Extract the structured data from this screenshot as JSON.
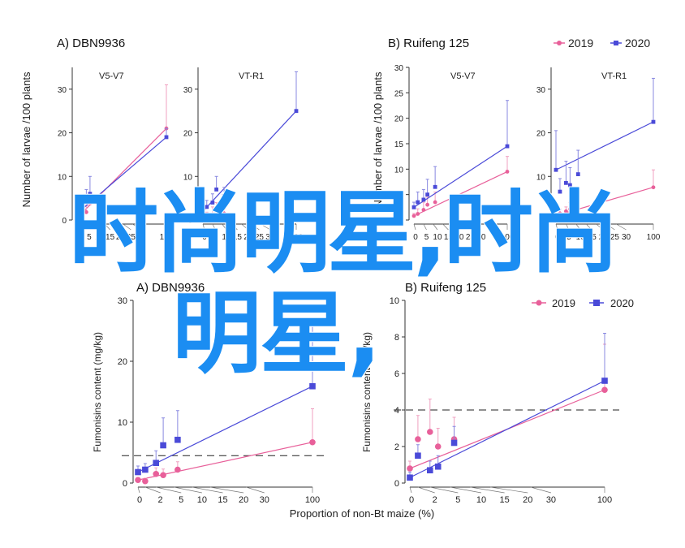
{
  "legend_years": [
    "2019",
    "2020"
  ],
  "colors": {
    "s2019": "#e8609a",
    "s2020": "#4a4ad8",
    "axis": "#333333",
    "errbar_2019": "#f0a0c0",
    "errbar_2020": "#8888e0",
    "overlay": "#1b8df2"
  },
  "overlay_text": {
    "line1": "时尚明星,时尚",
    "line2": "明星,"
  },
  "chart_data": [
    {
      "type": "scatter",
      "panel_title": "A)  DBN9936",
      "subtitle": "V5-V7",
      "ylabel": "Number of larvae /100 plants",
      "xlabel": "",
      "ylim": [
        0,
        35
      ],
      "yticks": [
        0,
        10,
        20,
        30
      ],
      "xticks": [
        0,
        5,
        10,
        15,
        20,
        25,
        30,
        100
      ],
      "series": [
        {
          "name": "2019",
          "x": [
            0,
            2,
            5,
            7,
            100
          ],
          "y": [
            0.5,
            1,
            1.8,
            3.8,
            21
          ],
          "err": [
            0.5,
            1,
            1.5,
            2,
            10
          ]
        },
        {
          "name": "2020",
          "x": [
            0,
            2,
            5,
            7,
            11,
            100
          ],
          "y": [
            1.5,
            2.5,
            4,
            6,
            4,
            19
          ],
          "err": [
            1,
            1.5,
            3,
            4,
            1,
            2
          ]
        }
      ]
    },
    {
      "type": "scatter",
      "panel_title": "",
      "subtitle": "VT-R1",
      "ylabel": "",
      "xlabel": "",
      "ylim": [
        0,
        35
      ],
      "yticks": [
        0,
        10,
        20,
        30
      ],
      "xticks": [
        0,
        5,
        10,
        15,
        20,
        25,
        30,
        100
      ],
      "series": [
        {
          "name": "2019",
          "x": [
            0,
            2,
            5,
            7,
            11
          ],
          "y": [
            0.5,
            0.8,
            1,
            2,
            1.5
          ],
          "err": [
            0.5,
            1,
            2,
            2,
            1
          ]
        },
        {
          "name": "2020",
          "x": [
            0,
            2,
            5,
            7,
            11,
            100
          ],
          "y": [
            2,
            3,
            4,
            7,
            5.5,
            25
          ],
          "err": [
            1,
            1.5,
            2,
            3,
            2,
            9
          ]
        }
      ]
    },
    {
      "type": "scatter",
      "panel_title": "B)  Ruifeng 125",
      "subtitle": "V5-V7",
      "ylabel": "Number of larvae /100 plants",
      "xlabel": "",
      "ylim": [
        0,
        30
      ],
      "yticks": [
        0,
        5,
        10,
        15,
        20,
        25,
        30
      ],
      "xticks": [
        0,
        5,
        10,
        15,
        20,
        25,
        30,
        100
      ],
      "series": [
        {
          "name": "2019",
          "x": [
            0,
            2,
            5,
            7,
            11,
            100
          ],
          "y": [
            0.8,
            1.2,
            2,
            3,
            3.5,
            9.5
          ],
          "err": [
            0.5,
            1,
            1.5,
            1.5,
            2,
            3
          ]
        },
        {
          "name": "2020",
          "x": [
            0,
            2,
            5,
            7,
            11,
            100
          ],
          "y": [
            2.5,
            3.5,
            4,
            5,
            6.5,
            14.5
          ],
          "err": [
            1,
            2,
            2,
            3,
            4,
            9
          ]
        }
      ]
    },
    {
      "type": "scatter",
      "panel_title": "",
      "subtitle": "VT-R1",
      "ylabel": "",
      "xlabel": "",
      "ylim": [
        0,
        35
      ],
      "yticks": [
        0,
        10,
        20,
        30
      ],
      "xticks": [
        0,
        5,
        10,
        15,
        20,
        25,
        30,
        100
      ],
      "series": [
        {
          "name": "2019",
          "x": [
            0,
            2,
            5,
            7,
            11,
            100
          ],
          "y": [
            1,
            1.5,
            2,
            2.5,
            2.5,
            7.5
          ],
          "err": [
            0.5,
            1,
            1,
            1.5,
            1,
            4
          ]
        },
        {
          "name": "2020",
          "x": [
            0,
            2,
            5,
            7,
            11,
            100
          ],
          "y": [
            11.5,
            6.5,
            8.5,
            8,
            10.5,
            22.5
          ],
          "err": [
            9,
            3,
            5,
            4,
            5.5,
            10
          ]
        }
      ]
    },
    {
      "type": "scatter",
      "panel_title": "A)  DBN9936",
      "subtitle": "",
      "ylabel": "Fumonisins content (mg/kg)",
      "xlabel": "Proportion of non-Bt maize (%)",
      "ylim": [
        0,
        30
      ],
      "yticks": [
        0,
        10,
        20,
        30
      ],
      "xticks": [
        0,
        2,
        5,
        10,
        15,
        20,
        30,
        100
      ],
      "threshold": 4.5,
      "series": [
        {
          "name": "2019",
          "x": [
            0,
            2,
            5,
            7,
            11,
            100
          ],
          "y": [
            0.5,
            0.3,
            1.5,
            1.3,
            2.2,
            6.7
          ],
          "err": [
            0.4,
            0.5,
            1,
            1,
            1.3,
            5.5
          ]
        },
        {
          "name": "2020",
          "x": [
            0,
            2,
            5,
            7,
            11,
            100
          ],
          "y": [
            1.8,
            2.2,
            3.3,
            6.2,
            7.1,
            15.9
          ],
          "err": [
            1,
            1,
            2,
            4.5,
            4.8,
            11
          ]
        }
      ]
    },
    {
      "type": "scatter",
      "panel_title": "B)  Ruifeng 125",
      "subtitle": "",
      "ylabel": "Fumonisins content (mg/kg)",
      "xlabel": "",
      "ylim": [
        0,
        10
      ],
      "yticks": [
        0,
        2,
        4,
        6,
        8,
        10
      ],
      "xticks": [
        0,
        2,
        5,
        10,
        15,
        20,
        30,
        100
      ],
      "threshold": 4,
      "series": [
        {
          "name": "2019",
          "x": [
            0,
            2,
            5,
            7,
            11,
            100
          ],
          "y": [
            0.8,
            2.4,
            2.8,
            2,
            2.4,
            5.1
          ],
          "err": [
            0.4,
            1.3,
            1.8,
            1,
            1.2,
            2.5
          ]
        },
        {
          "name": "2020",
          "x": [
            0,
            2,
            5,
            7,
            11,
            100
          ],
          "y": [
            0.3,
            1.5,
            0.7,
            0.9,
            2.2,
            5.6
          ],
          "err": [
            0.3,
            0.6,
            0.5,
            0.6,
            0.9,
            2.6
          ]
        }
      ]
    }
  ]
}
